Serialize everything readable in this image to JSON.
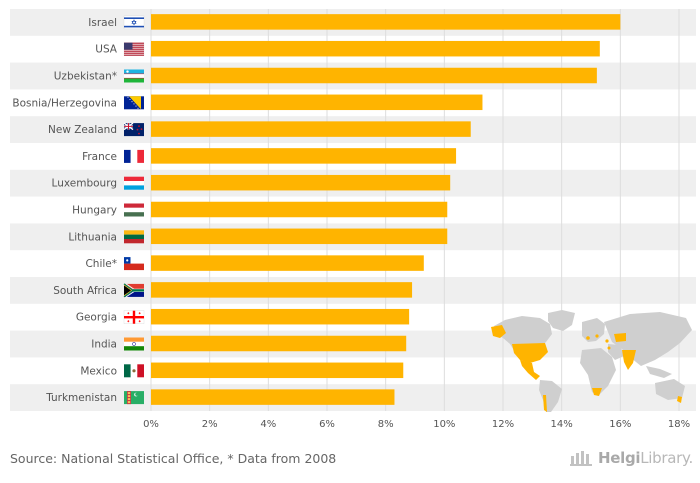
{
  "chart_data": {
    "type": "bar",
    "orientation": "horizontal",
    "categories": [
      "Israel",
      "USA",
      "Uzbekistan*",
      "Bosnia/Herzegovina",
      "New Zealand",
      "France",
      "Luxembourg",
      "Hungary",
      "Lithuania",
      "Chile*",
      "South Africa",
      "Georgia",
      "India",
      "Mexico",
      "Turkmenistan"
    ],
    "values": [
      16.0,
      15.3,
      15.2,
      11.3,
      10.9,
      10.4,
      10.2,
      10.1,
      10.1,
      9.3,
      8.9,
      8.8,
      8.7,
      8.6,
      8.3
    ],
    "xlim": [
      0,
      18
    ],
    "x_ticks": [
      0,
      2,
      4,
      6,
      8,
      10,
      12,
      14,
      16,
      18
    ],
    "x_tick_format": "{v}%",
    "title": "",
    "xlabel": "",
    "ylabel": "",
    "grid": true,
    "colors": {
      "bar": "#FFB400",
      "band": "#efefef",
      "grid": "#dddddd",
      "label": "#555555"
    },
    "flags": [
      "israel-flag",
      "usa-flag",
      "uzbekistan-flag",
      "bosnia-flag",
      "new-zealand-flag",
      "france-flag",
      "luxembourg-flag",
      "hungary-flag",
      "lithuania-flag",
      "chile-flag",
      "south-africa-flag",
      "georgia-flag",
      "india-flag",
      "mexico-flag",
      "turkmenistan-flag"
    ]
  },
  "footer": {
    "source": "Source: National Statistical Office, * Data from 2008",
    "logo_prefix": "Helgi",
    "logo_suffix": "Library."
  },
  "map": {
    "land_color": "#cfcfcf",
    "highlight_color": "#FFB400",
    "icon": "world-map-icon"
  }
}
